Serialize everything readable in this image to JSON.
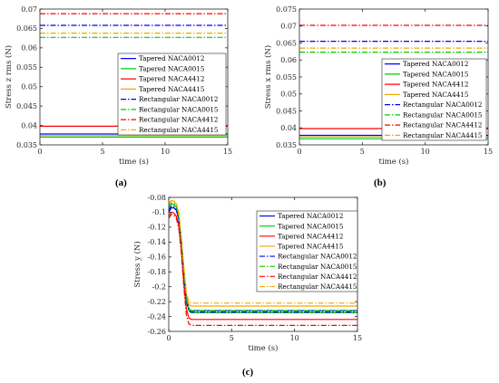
{
  "chart_data": [
    {
      "id": "a",
      "type": "line",
      "panel_label": "(a)",
      "xlabel": "time (s)",
      "ylabel": "Stress z rms (N)",
      "xlim": [
        0,
        15
      ],
      "ylim": [
        0.035,
        0.07
      ],
      "xticks": [
        0,
        5,
        10,
        15
      ],
      "xtick_labels": [
        "0",
        "5",
        "10",
        "15"
      ],
      "yticks": [
        0.035,
        0.04,
        0.045,
        0.05,
        0.055,
        0.06,
        0.065,
        0.07
      ],
      "ytick_labels": [
        "0.035",
        "0.04",
        "0.045",
        "0.05",
        "0.055",
        "0.06",
        "0.065",
        "0.07"
      ],
      "grid": false,
      "legend_position": "center-right",
      "series": [
        {
          "name": "Tapered NACA0012",
          "color": "#0000ff",
          "dash": "solid",
          "x": [
            0,
            15
          ],
          "y": [
            0.0378,
            0.0378
          ]
        },
        {
          "name": "Tapered NACA0015",
          "color": "#00cc00",
          "dash": "solid",
          "x": [
            0,
            15
          ],
          "y": [
            0.037,
            0.037
          ]
        },
        {
          "name": "Tapered NACA4412",
          "color": "#ff0000",
          "dash": "solid",
          "x": [
            0,
            15
          ],
          "y": [
            0.0398,
            0.0398
          ]
        },
        {
          "name": "Tapered NACA4415",
          "color": "#f2a900",
          "dash": "solid",
          "x": [
            0,
            15
          ],
          "y": [
            0.0374,
            0.0374
          ]
        },
        {
          "name": "Rectangular NACA0012",
          "color": "#0000ff",
          "dash": "dashdot",
          "x": [
            0,
            15
          ],
          "y": [
            0.0658,
            0.0658
          ]
        },
        {
          "name": "Rectangular NACA0015",
          "color": "#00cc00",
          "dash": "dashdot",
          "x": [
            0,
            15
          ],
          "y": [
            0.0627,
            0.0627
          ]
        },
        {
          "name": "Rectangular NACA4412",
          "color": "#ff0000",
          "dash": "dashdot",
          "x": [
            0,
            15
          ],
          "y": [
            0.0688,
            0.0688
          ]
        },
        {
          "name": "Rectangular NACA4415",
          "color": "#f2a900",
          "dash": "dashdot",
          "x": [
            0,
            15
          ],
          "y": [
            0.0638,
            0.0638
          ]
        }
      ]
    },
    {
      "id": "b",
      "type": "line",
      "panel_label": "(b)",
      "xlabel": "time (s)",
      "ylabel": "Stress x rms (N)",
      "xlim": [
        0,
        15
      ],
      "ylim": [
        0.035,
        0.075
      ],
      "xticks": [
        0,
        5,
        10,
        15
      ],
      "xtick_labels": [
        "0",
        "5",
        "10",
        "15"
      ],
      "yticks": [
        0.035,
        0.04,
        0.045,
        0.05,
        0.055,
        0.06,
        0.065,
        0.07,
        0.075
      ],
      "ytick_labels": [
        "0.035",
        "0.04",
        "0.045",
        "0.05",
        "0.055",
        "0.06",
        "0.065",
        "0.07",
        "0.075"
      ],
      "grid": false,
      "legend_position": "center-right",
      "series": [
        {
          "name": "Tapered NACA0012",
          "color": "#0000ff",
          "dash": "solid",
          "x": [
            0,
            15
          ],
          "y": [
            0.0378,
            0.0378
          ]
        },
        {
          "name": "Tapered NACA0015",
          "color": "#00cc00",
          "dash": "solid",
          "x": [
            0,
            15
          ],
          "y": [
            0.0368,
            0.0368
          ]
        },
        {
          "name": "Tapered NACA4412",
          "color": "#ff0000",
          "dash": "solid",
          "x": [
            0,
            15
          ],
          "y": [
            0.0398,
            0.0398
          ]
        },
        {
          "name": "Tapered NACA4415",
          "color": "#f2a900",
          "dash": "solid",
          "x": [
            0,
            15
          ],
          "y": [
            0.0373,
            0.0373
          ]
        },
        {
          "name": "Rectangular NACA0012",
          "color": "#0000ff",
          "dash": "dashdot",
          "x": [
            0,
            15
          ],
          "y": [
            0.0655,
            0.0655
          ]
        },
        {
          "name": "Rectangular NACA0015",
          "color": "#00cc00",
          "dash": "dashdot",
          "x": [
            0,
            15
          ],
          "y": [
            0.0623,
            0.0623
          ]
        },
        {
          "name": "Rectangular NACA4412",
          "color": "#ff0000",
          "dash": "dashdot",
          "x": [
            0,
            15
          ],
          "y": [
            0.0702,
            0.0702
          ]
        },
        {
          "name": "Rectangular NACA4415",
          "color": "#f2a900",
          "dash": "dashdot",
          "x": [
            0,
            15
          ],
          "y": [
            0.0635,
            0.0635
          ]
        }
      ]
    },
    {
      "id": "c",
      "type": "line",
      "panel_label": "(c)",
      "xlabel": "time (s)",
      "ylabel": "Stress y (N)",
      "xlim": [
        0,
        15
      ],
      "ylim": [
        -0.26,
        -0.08
      ],
      "xticks": [
        0,
        5,
        10,
        15
      ],
      "xtick_labels": [
        "0",
        "5",
        "10",
        "15"
      ],
      "yticks": [
        -0.26,
        -0.24,
        -0.22,
        -0.2,
        -0.18,
        -0.16,
        -0.14,
        -0.12,
        -0.1,
        -0.08
      ],
      "ytick_labels": [
        "-0.26",
        "-0.24",
        "-0.22",
        "-0.2",
        "-0.18",
        "-0.16",
        "-0.14",
        "-0.12",
        "-0.1",
        "-0.08"
      ],
      "grid": false,
      "legend_position": "top-right",
      "series": [
        {
          "name": "Tapered NACA0012",
          "color": "#0000ff",
          "dash": "solid",
          "x": [
            0,
            0.2,
            0.4,
            0.6,
            0.8,
            1.0,
            1.2,
            1.4,
            1.6,
            1.8,
            2.0,
            2.2,
            15
          ],
          "y": [
            -0.1,
            -0.094,
            -0.094,
            -0.097,
            -0.11,
            -0.14,
            -0.18,
            -0.215,
            -0.23,
            -0.232,
            -0.232,
            -0.232,
            -0.232
          ]
        },
        {
          "name": "Tapered NACA0015",
          "color": "#00cc00",
          "dash": "solid",
          "x": [
            0,
            0.2,
            0.4,
            0.6,
            0.8,
            1.0,
            1.2,
            1.4,
            1.6,
            1.8,
            2.0,
            2.2,
            15
          ],
          "y": [
            -0.095,
            -0.089,
            -0.089,
            -0.093,
            -0.107,
            -0.14,
            -0.18,
            -0.218,
            -0.233,
            -0.235,
            -0.235,
            -0.235,
            -0.235
          ]
        },
        {
          "name": "Tapered NACA4412",
          "color": "#ff0000",
          "dash": "solid",
          "x": [
            0,
            0.2,
            0.4,
            0.6,
            0.8,
            1.0,
            1.2,
            1.4,
            1.6,
            1.8,
            2.0,
            2.2,
            15
          ],
          "y": [
            -0.105,
            -0.1,
            -0.101,
            -0.105,
            -0.118,
            -0.15,
            -0.195,
            -0.23,
            -0.242,
            -0.244,
            -0.244,
            -0.244,
            -0.244
          ]
        },
        {
          "name": "Tapered NACA4415",
          "color": "#f2a900",
          "dash": "solid",
          "x": [
            0,
            0.2,
            0.4,
            0.6,
            0.8,
            1.0,
            1.2,
            1.4,
            1.6,
            1.8,
            2.0,
            2.2,
            15
          ],
          "y": [
            -0.09,
            -0.085,
            -0.085,
            -0.089,
            -0.102,
            -0.135,
            -0.175,
            -0.21,
            -0.224,
            -0.226,
            -0.226,
            -0.226,
            -0.226
          ]
        },
        {
          "name": "Rectangular NACA0012",
          "color": "#0000ff",
          "dash": "dashdot",
          "x": [
            0,
            0.2,
            0.4,
            0.6,
            0.8,
            1.0,
            1.2,
            1.4,
            1.6,
            1.8,
            2.0,
            2.2,
            15
          ],
          "y": [
            -0.098,
            -0.092,
            -0.092,
            -0.096,
            -0.11,
            -0.142,
            -0.183,
            -0.22,
            -0.232,
            -0.234,
            -0.234,
            -0.234,
            -0.234
          ]
        },
        {
          "name": "Rectangular NACA0015",
          "color": "#00cc00",
          "dash": "dashdot",
          "x": [
            0,
            0.2,
            0.4,
            0.6,
            0.8,
            1.0,
            1.2,
            1.4,
            1.6,
            1.8,
            2.0,
            2.2,
            15
          ],
          "y": [
            -0.093,
            -0.088,
            -0.088,
            -0.092,
            -0.106,
            -0.14,
            -0.18,
            -0.217,
            -0.23,
            -0.232,
            -0.232,
            -0.232,
            -0.232
          ]
        },
        {
          "name": "Rectangular NACA4412",
          "color": "#ff0000",
          "dash": "dashdot",
          "x": [
            0,
            0.2,
            0.4,
            0.6,
            0.8,
            1.0,
            1.2,
            1.4,
            1.6,
            1.8,
            2.0,
            2.2,
            15
          ],
          "y": [
            -0.108,
            -0.103,
            -0.104,
            -0.108,
            -0.122,
            -0.155,
            -0.2,
            -0.238,
            -0.25,
            -0.252,
            -0.252,
            -0.252,
            -0.252
          ]
        },
        {
          "name": "Rectangular NACA4415",
          "color": "#f2a900",
          "dash": "dashdot",
          "x": [
            0,
            0.2,
            0.4,
            0.6,
            0.8,
            1.0,
            1.2,
            1.4,
            1.6,
            1.8,
            2.0,
            2.2,
            15
          ],
          "y": [
            -0.089,
            -0.084,
            -0.084,
            -0.088,
            -0.101,
            -0.133,
            -0.173,
            -0.208,
            -0.22,
            -0.222,
            -0.222,
            -0.222,
            -0.222
          ]
        }
      ]
    }
  ]
}
